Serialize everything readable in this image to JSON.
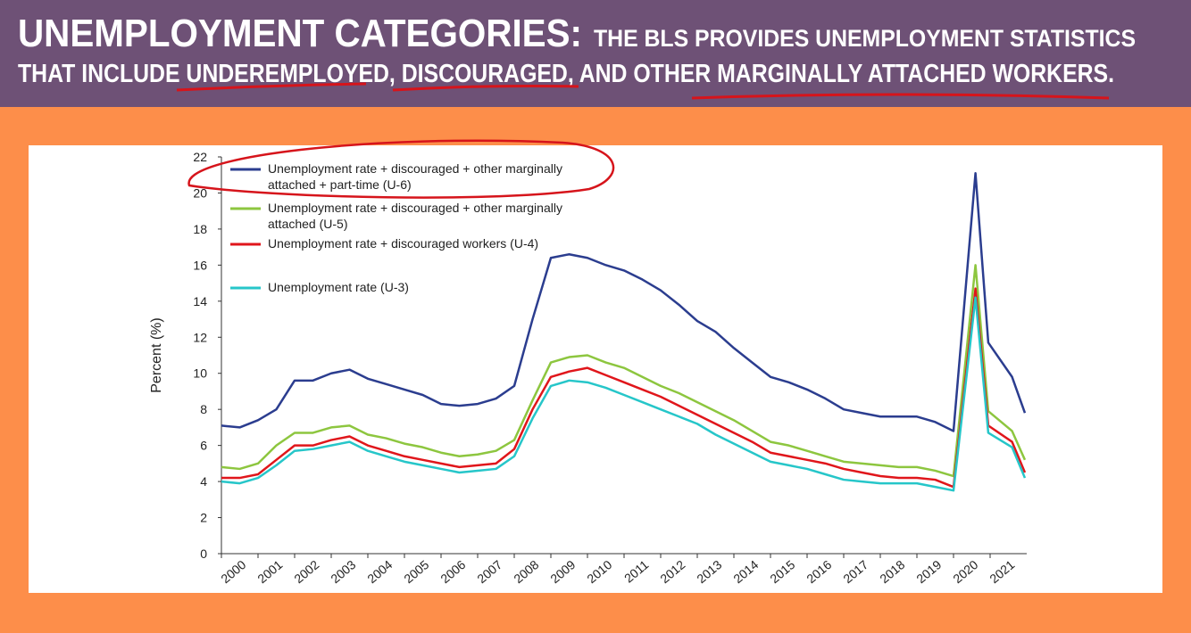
{
  "header": {
    "title": "UNEMPLOYMENT CATEGORIES:",
    "subtitle": [
      "THE BLS PROVIDES UNEMPLOYMENT STATISTICS",
      "THAT INCLUDE UNDEREMPLOYED, DISCOURAGED, AND OTHER MARGINALLY ATTACHED WORKERS."
    ]
  },
  "chart_data": {
    "type": "line",
    "y_label": "Percent (%)",
    "x": [
      2000,
      2000.5,
      2001,
      2001.5,
      2002,
      2002.5,
      2003,
      2003.5,
      2004,
      2004.5,
      2005,
      2005.5,
      2006,
      2006.5,
      2007,
      2007.5,
      2008,
      2008.5,
      2009,
      2009.5,
      2010,
      2010.5,
      2011,
      2011.5,
      2012,
      2012.5,
      2013,
      2013.5,
      2014,
      2014.5,
      2015,
      2015.5,
      2016,
      2016.5,
      2017,
      2017.5,
      2018,
      2018.5,
      2019,
      2019.5,
      2020,
      2020.6,
      2020.95,
      2021.6,
      2021.95
    ],
    "xlim": [
      2000,
      2022
    ],
    "xticks": [
      2000,
      2001,
      2002,
      2003,
      2004,
      2005,
      2006,
      2007,
      2008,
      2009,
      2010,
      2011,
      2012,
      2013,
      2014,
      2015,
      2016,
      2017,
      2018,
      2019,
      2020,
      2021
    ],
    "ylim": [
      0,
      22
    ],
    "yticks": [
      0,
      2,
      4,
      6,
      8,
      10,
      12,
      14,
      16,
      18,
      20,
      22
    ],
    "series": [
      {
        "name": "Unemployment rate + discouraged + other marginally attached + part-time (U-6)",
        "color": "#2b3d8f",
        "values": [
          7.1,
          7.0,
          7.4,
          8.0,
          9.6,
          9.6,
          10.0,
          10.2,
          9.7,
          9.4,
          9.1,
          8.8,
          8.3,
          8.2,
          8.3,
          8.6,
          9.3,
          13.0,
          16.4,
          16.6,
          16.4,
          16.0,
          15.7,
          15.2,
          14.6,
          13.8,
          12.9,
          12.3,
          11.4,
          10.6,
          9.8,
          9.5,
          9.1,
          8.6,
          8.0,
          7.8,
          7.6,
          7.6,
          7.6,
          7.3,
          6.8,
          21.1,
          11.7,
          9.8,
          7.8
        ]
      },
      {
        "name": "Unemployment rate + discouraged + other marginally attached (U-5)",
        "color": "#8dc63f",
        "values": [
          4.8,
          4.7,
          5.0,
          6.0,
          6.7,
          6.7,
          7.0,
          7.1,
          6.6,
          6.4,
          6.1,
          5.9,
          5.6,
          5.4,
          5.5,
          5.7,
          6.3,
          8.5,
          10.6,
          10.9,
          11.0,
          10.6,
          10.3,
          9.8,
          9.3,
          8.9,
          8.4,
          7.9,
          7.4,
          6.8,
          6.2,
          6.0,
          5.7,
          5.4,
          5.1,
          5.0,
          4.9,
          4.8,
          4.8,
          4.6,
          4.3,
          16.0,
          7.9,
          6.8,
          5.2
        ]
      },
      {
        "name": "Unemployment rate + discouraged workers (U-4)",
        "color": "#e0161b",
        "values": [
          4.2,
          4.2,
          4.4,
          5.2,
          6.0,
          6.0,
          6.3,
          6.5,
          6.0,
          5.7,
          5.4,
          5.2,
          5.0,
          4.8,
          4.9,
          5.0,
          5.8,
          8.0,
          9.8,
          10.1,
          10.3,
          9.9,
          9.5,
          9.1,
          8.7,
          8.2,
          7.7,
          7.2,
          6.7,
          6.2,
          5.6,
          5.4,
          5.2,
          5.0,
          4.7,
          4.5,
          4.3,
          4.2,
          4.2,
          4.1,
          3.7,
          14.7,
          7.1,
          6.2,
          4.5
        ]
      },
      {
        "name": "Unemployment rate (U-3)",
        "color": "#26c6c9",
        "values": [
          4.0,
          3.9,
          4.2,
          4.9,
          5.7,
          5.8,
          6.0,
          6.2,
          5.7,
          5.4,
          5.1,
          4.9,
          4.7,
          4.5,
          4.6,
          4.7,
          5.4,
          7.5,
          9.3,
          9.6,
          9.5,
          9.2,
          8.8,
          8.4,
          8.0,
          7.6,
          7.2,
          6.6,
          6.1,
          5.6,
          5.1,
          4.9,
          4.7,
          4.4,
          4.1,
          4.0,
          3.9,
          3.9,
          3.9,
          3.7,
          3.5,
          14.2,
          6.7,
          5.9,
          4.2
        ]
      }
    ]
  }
}
